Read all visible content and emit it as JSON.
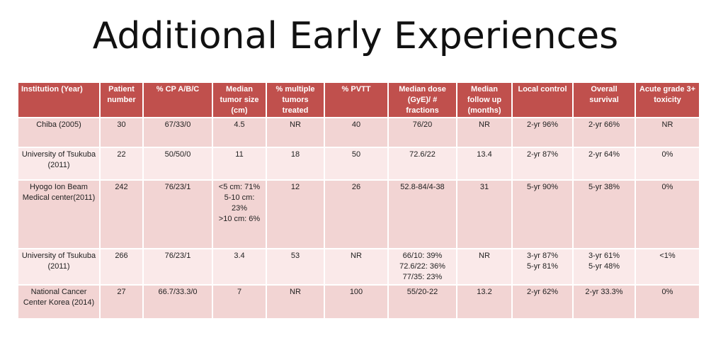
{
  "slide": {
    "title": "Additional Early Experiences"
  },
  "table": {
    "headers": [
      "Institution (Year)",
      "Patient number",
      "% CP A/B/C",
      "Median tumor size (cm)",
      "% multiple tumors treated",
      "% PVTT",
      "Median dose (GyE)/ # fractions",
      "Median follow up (months)",
      "Local control",
      "Overall survival",
      "Acute grade 3+ toxicity"
    ],
    "rows": [
      [
        "Chiba (2005)",
        "30",
        "67/33/0",
        "4.5",
        "NR",
        "40",
        "76/20",
        "NR",
        "2-yr 96%",
        "2-yr 66%",
        "NR"
      ],
      [
        "University of Tsukuba (2011)",
        "22",
        "50/50/0",
        "11",
        "18",
        "50",
        "72.6/22",
        "13.4",
        "2-yr 87%",
        "2-yr 64%",
        "0%"
      ],
      [
        "Hyogo Ion Beam Medical center(2011)",
        "242",
        "76/23/1",
        "<5 cm: 71%\n5-10 cm: 23%\n>10 cm: 6%",
        "12",
        "26",
        "52.8-84/4-38",
        "31",
        "5-yr 90%",
        "5-yr 38%",
        "0%"
      ],
      [
        "University of Tsukuba (2011)",
        "266",
        "76/23/1",
        "3.4",
        "53",
        "NR",
        "66/10: 39%\n72.6/22: 36%\n77/35: 23%",
        "NR",
        "3-yr 87%\n5-yr 81%",
        "3-yr 61%\n5-yr 48%",
        "<1%"
      ],
      [
        "National Cancer Center Korea (2014)",
        "27",
        "66.7/33.3/0",
        "7",
        "NR",
        "100",
        "55/20-22",
        "13.2",
        "2-yr 62%",
        "2-yr 33.3%",
        "0%"
      ]
    ]
  }
}
